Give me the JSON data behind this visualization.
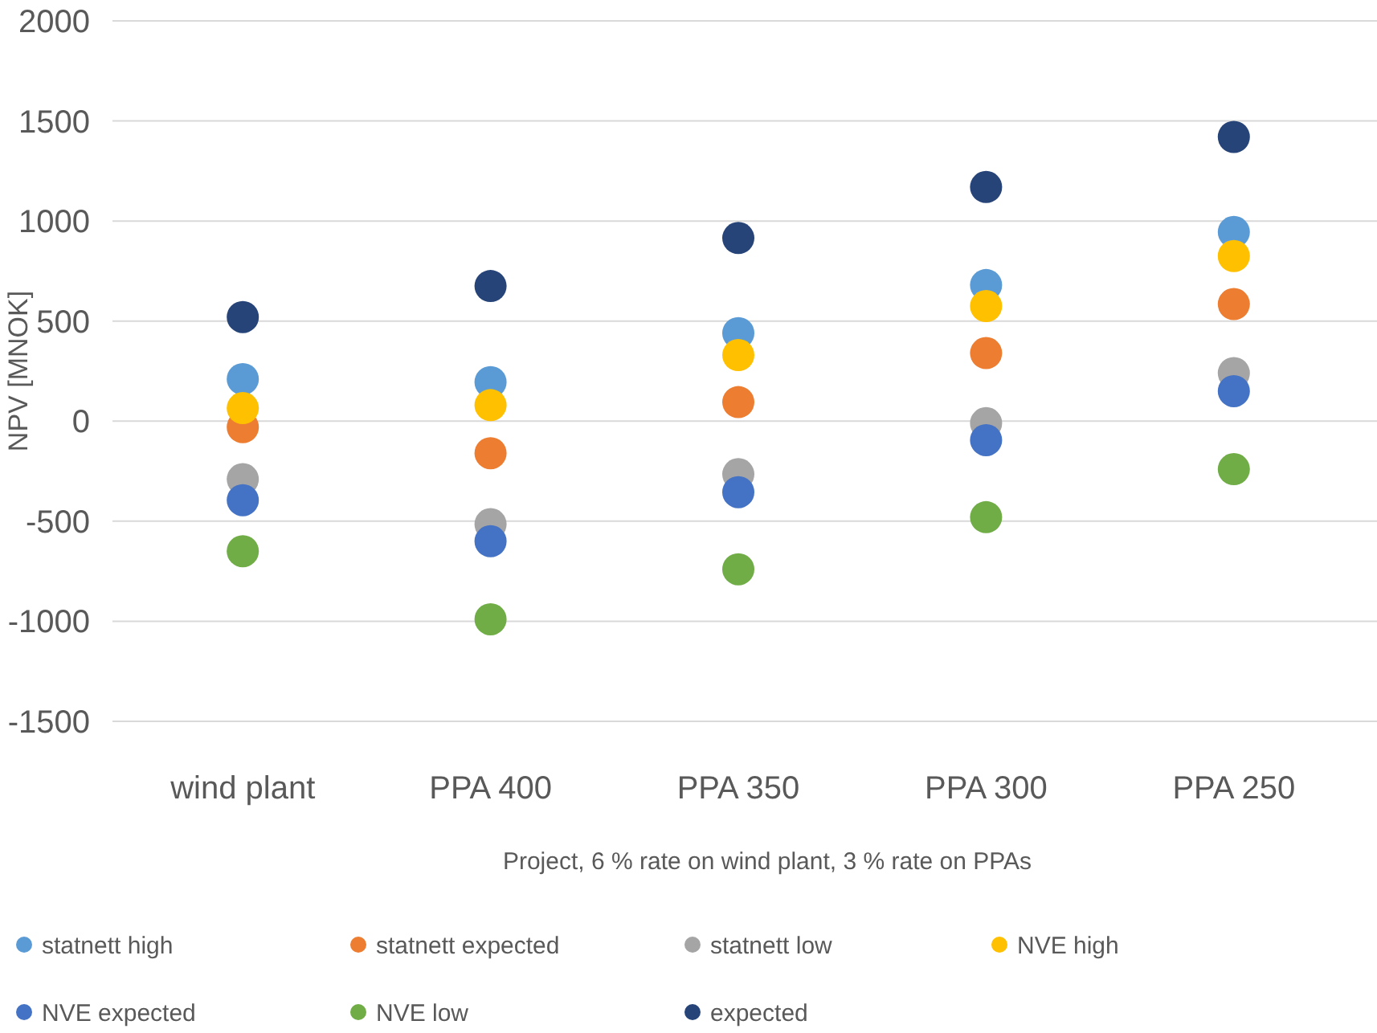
{
  "chart_data": {
    "type": "scatter",
    "xlabel": "Project, 6 % rate on wind plant, 3 % rate on PPAs",
    "ylabel": "NPV [MNOK]",
    "categories": [
      "wind plant",
      "PPA 400",
      "PPA 350",
      "PPA 300",
      "PPA 250"
    ],
    "ylim": [
      -1500,
      2000
    ],
    "yticks": [
      -1500,
      -1000,
      -500,
      0,
      500,
      1000,
      1500,
      2000
    ],
    "grid": "y",
    "legend": "bottom",
    "marker": "circle",
    "series": [
      {
        "name": "statnett high",
        "color": "#5b9bd5",
        "values": [
          210,
          195,
          440,
          680,
          945
        ]
      },
      {
        "name": "statnett expected",
        "color": "#ed7d31",
        "values": [
          -30,
          -160,
          95,
          340,
          585
        ]
      },
      {
        "name": "statnett low",
        "color": "#a5a5a5",
        "values": [
          -290,
          -515,
          -265,
          -10,
          240
        ]
      },
      {
        "name": "NVE high",
        "color": "#ffc000",
        "values": [
          65,
          80,
          330,
          575,
          825
        ]
      },
      {
        "name": "NVE expected",
        "color": "#4472c4",
        "values": [
          -395,
          -600,
          -355,
          -95,
          150
        ]
      },
      {
        "name": "NVE low",
        "color": "#70ad47",
        "values": [
          -650,
          -990,
          -740,
          -480,
          -240
        ]
      },
      {
        "name": "expected",
        "color": "#264478",
        "values": [
          520,
          675,
          915,
          1170,
          1420
        ]
      }
    ]
  }
}
